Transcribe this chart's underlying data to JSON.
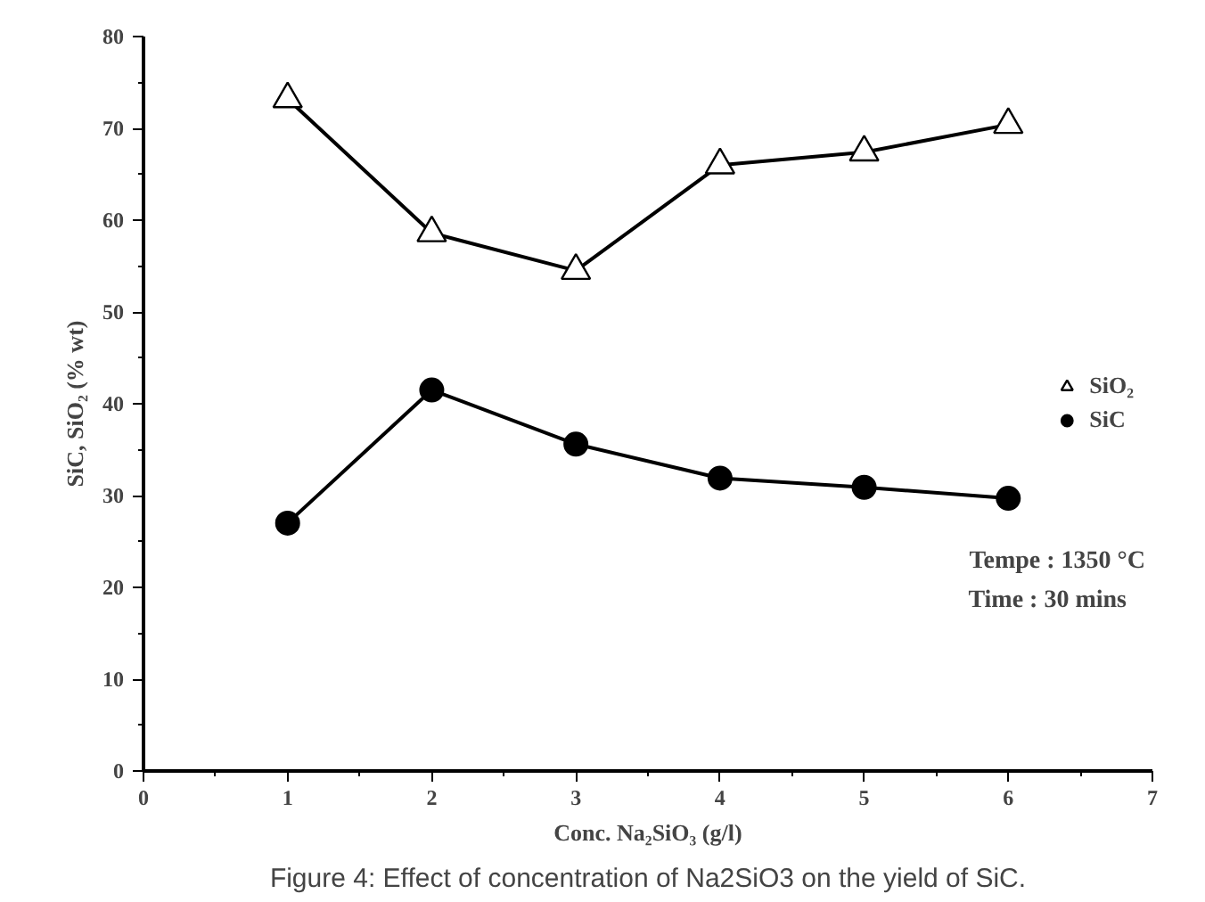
{
  "chart_data": {
    "type": "line",
    "xlabel": "Conc. Na₂SiO₃ (g/l)",
    "ylabel": "SiC, SiO₂ (% wt)",
    "x": [
      1,
      2,
      3,
      4,
      5,
      6
    ],
    "series": [
      {
        "name": "SiO₂",
        "color": "#000000",
        "marker": "triangle",
        "values": [
          73.2,
          58.6,
          54.5,
          66.0,
          67.4,
          70.4
        ]
      },
      {
        "name": "SiC",
        "color": "#000000",
        "marker": "circle",
        "values": [
          27.0,
          41.5,
          35.6,
          31.9,
          30.9,
          29.7
        ]
      }
    ],
    "xlim": [
      0,
      7
    ],
    "xticks": [
      0,
      1,
      2,
      3,
      4,
      5,
      6,
      7
    ],
    "ylim": [
      0,
      80
    ],
    "yticks": [
      0,
      10,
      20,
      30,
      40,
      50,
      60,
      70,
      80
    ],
    "grid": false,
    "legend": "right",
    "line_style": "solid",
    "annotations": [
      "Tempe : 1350 °C",
      "Time    : 30 mins",
      "Figure 4: Effect of concentration of Na2SiO3 on the yield of SiC."
    ]
  }
}
